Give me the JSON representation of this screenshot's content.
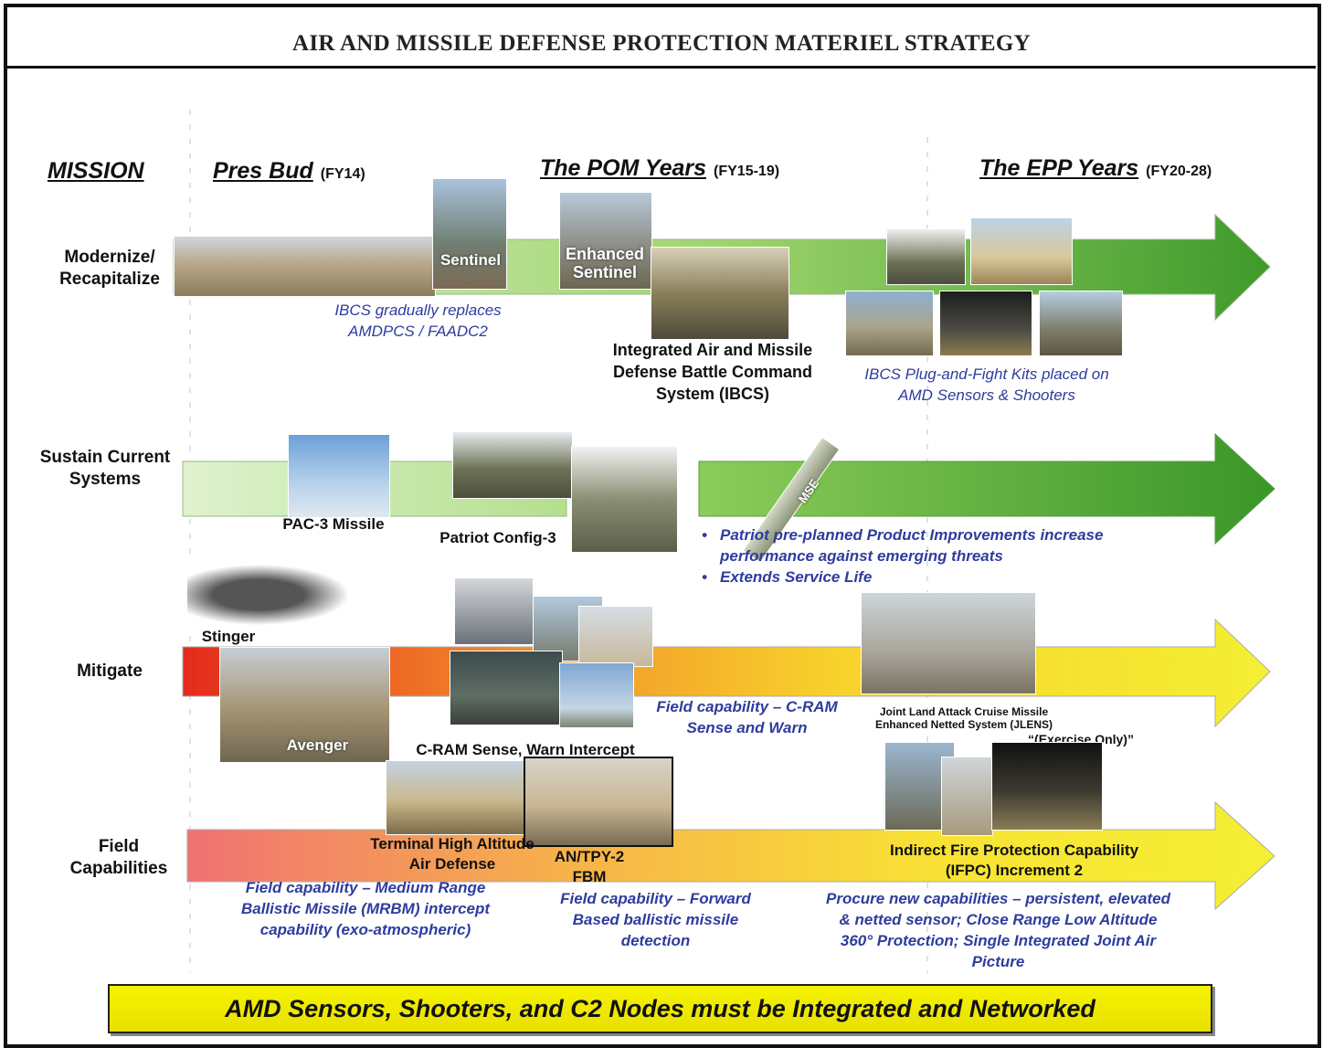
{
  "title": "AIR AND MISSILE DEFENSE PROTECTION MATERIEL STRATEGY",
  "mission_header": "MISSION",
  "columns": [
    {
      "name": "Pres Bud",
      "period": "(FY14)"
    },
    {
      "name": "The POM Years",
      "period": "(FY15-19)"
    },
    {
      "name": "The EPP Years",
      "period": "(FY20-28)"
    }
  ],
  "rows": [
    {
      "label": "Modernize/ Recapitalize",
      "photo_labels": [
        "Sentinel",
        "Enhanced Sentinel"
      ],
      "systems": [
        "Integrated Air and Missile Defense Battle Command System (IBCS)"
      ],
      "notes": [
        "IBCS gradually replaces AMDPCS / FAADC2",
        "IBCS Plug-and-Fight Kits placed on AMD Sensors & Shooters"
      ]
    },
    {
      "label": "Sustain Current Systems",
      "photo_labels": [
        "MSE"
      ],
      "systems": [
        "PAC-3 Missile",
        "Patriot Config-3"
      ],
      "notes": [
        "Patriot pre-planned Product Improvements increase performance against emerging threats",
        "Extends Service Life"
      ]
    },
    {
      "label": "Mitigate",
      "photo_labels": [
        "Avenger"
      ],
      "systems": [
        "Stinger",
        "C-RAM Sense, Warn Intercept",
        "Joint Land Attack Cruise Missile Enhanced Netted System (JLENS)",
        "“(Exercise Only)”"
      ],
      "notes": [
        "Field capability – C-RAM Sense and Warn"
      ]
    },
    {
      "label": "Field Capabilities",
      "photo_labels": [],
      "systems": [
        "Terminal High Altitude Air Defense",
        "AN/TPY-2 FBM",
        "Indirect Fire Protection Capability (IFPC) Increment 2"
      ],
      "notes": [
        "Field capability – Medium Range Ballistic Missile (MRBM) intercept capability (exo-atmospheric)",
        "Field capability – Forward Based ballistic missile detection",
        "Procure new capabilities – persistent, elevated & netted sensor; Close Range Low Altitude 360° Protection; Single Integrated Joint Air Picture"
      ]
    }
  ],
  "banner": "AMD Sensors, Shooters, and C2 Nodes must be Integrated and Networked"
}
